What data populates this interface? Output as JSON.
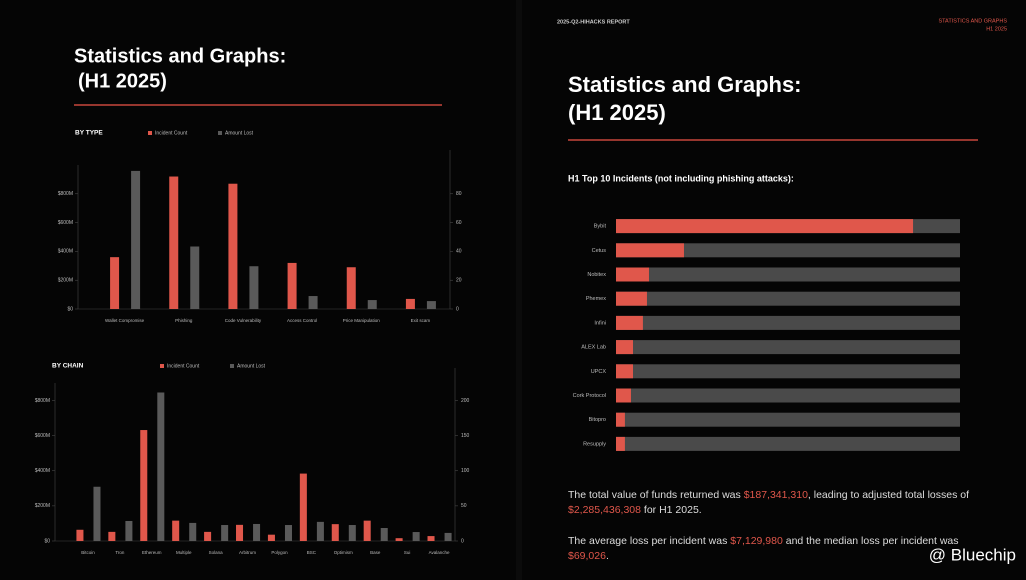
{
  "left": {
    "title": "Statistics and Graphs:",
    "subtitle": "(H1 2025)"
  },
  "right": {
    "header": "2025-Q2-HIHACKS REPORT",
    "section": "STATISTICS AND GRAPHS",
    "section_sub": "H1 2025",
    "title": "Statistics and Graphs:",
    "subtitle": "(H1 2025)",
    "paragraphs": [
      [
        {
          "text": "The total value of funds returned was "
        },
        {
          "text": "$187,341,310",
          "highlight": true
        },
        {
          "text": ", leading to adjusted total losses of "
        },
        {
          "text": "$2,285,436,308",
          "highlight": true
        },
        {
          "text": " for H1 2025."
        }
      ],
      [
        {
          "text": "The average loss per incident was "
        },
        {
          "text": "$7,129,980",
          "highlight": true
        },
        {
          "text": " and the median loss per incident was "
        },
        {
          "text": "$69,026",
          "highlight": true
        },
        {
          "text": "."
        }
      ]
    ]
  },
  "chart_data": [
    {
      "type": "bar",
      "title": "BY TYPE",
      "categories": [
        "Wallet Compromise",
        "Phishing",
        "Code Vulnerability",
        "Access Control",
        "Price Manipulation",
        "Exit scam"
      ],
      "series": [
        {
          "name": "Incident Count",
          "color": "#e0574b",
          "axis": "y2",
          "values": [
            36,
            92,
            87,
            32,
            29,
            7
          ]
        },
        {
          "name": "Amount Lost",
          "color": "#5a5a5a",
          "values": [
            959000000,
            434000000,
            297000000,
            90000000,
            62000000,
            55000000
          ]
        }
      ],
      "ylim": [
        0,
        1000000000
      ],
      "yticks": [
        {
          "value": 0,
          "label": "$0"
        },
        {
          "value": 200000000,
          "label": "$200M"
        },
        {
          "value": 400000000,
          "label": "$400M"
        },
        {
          "value": 600000000,
          "label": "$600M"
        },
        {
          "value": 800000000,
          "label": "$800M"
        }
      ],
      "y2lim": [
        0,
        100
      ],
      "y2ticks": [
        0,
        20,
        40,
        60,
        80
      ]
    },
    {
      "type": "bar",
      "title": "BY CHAIN",
      "categories": [
        "Bitcoin",
        "Tron",
        "Ethereum",
        "Multiple",
        "Solana",
        "Arbitrum",
        "Polygon",
        "BSC",
        "Optimism",
        "Base",
        "Sui",
        "Avalanche"
      ],
      "series": [
        {
          "name": "Incident Count",
          "color": "#e0574b",
          "axis": "y2",
          "values": [
            16,
            13,
            158,
            29,
            13,
            23,
            9,
            96,
            24,
            29,
            4,
            7
          ]
        },
        {
          "name": "Amount Lost",
          "color": "#5a5a5a",
          "values": [
            309000000,
            114000000,
            846000000,
            103000000,
            91000000,
            97000000,
            91000000,
            109000000,
            91000000,
            74000000,
            51000000,
            46000000
          ]
        }
      ],
      "ylim": [
        0,
        900000000
      ],
      "yticks": [
        {
          "value": 0,
          "label": "$0"
        },
        {
          "value": 200000000,
          "label": "$200M"
        },
        {
          "value": 400000000,
          "label": "$400M"
        },
        {
          "value": 600000000,
          "label": "$600M"
        },
        {
          "value": 800000000,
          "label": "$800M"
        }
      ],
      "y2lim": [
        0,
        225
      ],
      "y2ticks": [
        0,
        50,
        100,
        150,
        200
      ]
    },
    {
      "type": "hbar",
      "title": "H1 Top 10 Incidents (not including phishing attacks):",
      "categories": [
        "Bybit",
        "Cetus",
        "Nobitex",
        "Phemex",
        "Infini",
        "ALEX Lab",
        "UPCX",
        "Cork Protocol",
        "Bitopro",
        "Resupply"
      ],
      "values": [
        1468000000,
        336000000,
        163000000,
        153000000,
        133000000,
        84000000,
        84000000,
        74000000,
        44000000,
        44000000
      ],
      "color": "#e0574b",
      "track_color": "#4a4a4a",
      "xlim": [
        0,
        1700000000
      ]
    }
  ],
  "watermark": "@ Bluechip"
}
